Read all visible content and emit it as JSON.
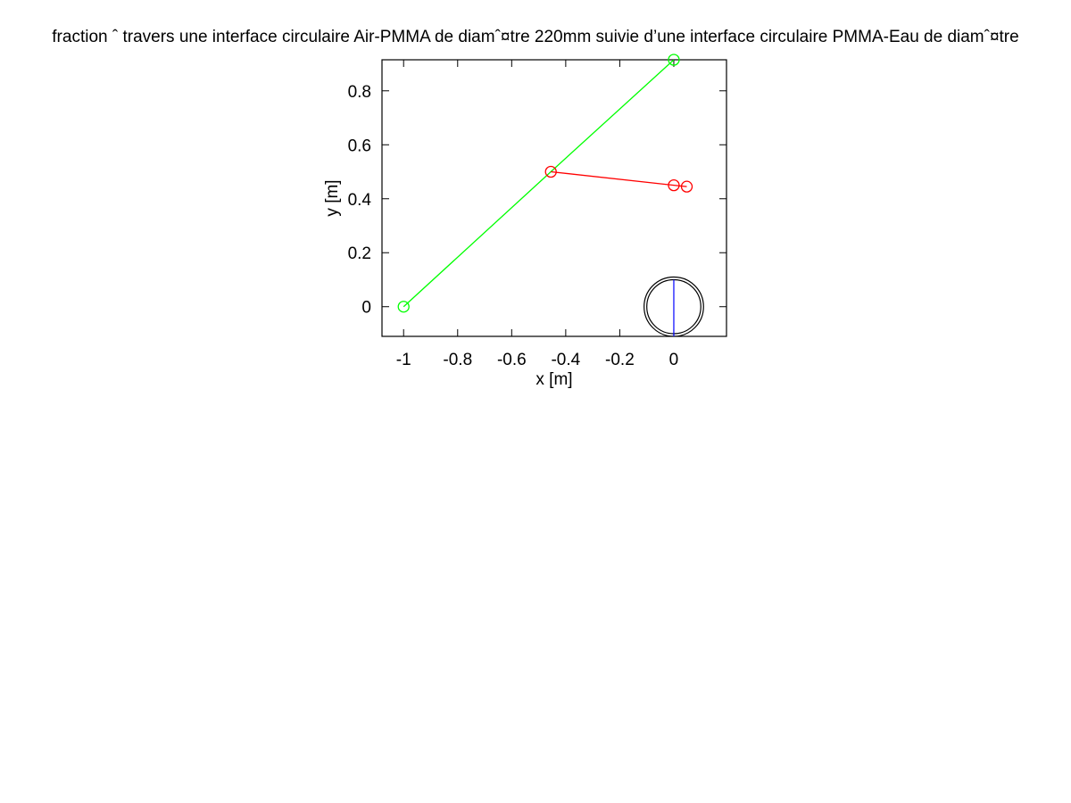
{
  "chart_data": {
    "type": "line",
    "title": "fraction ˆ  travers une interface circulaire Air-PMMA de diamˆ¤tre 220mm suivie d’une interface circulaire PMMA-Eau de diamˆ¤tre",
    "xlabel": "x [m]",
    "ylabel": "y [m]",
    "xlim": [
      -1.08,
      0.195
    ],
    "ylim": [
      -0.11,
      0.915
    ],
    "x_ticks": [
      -1,
      -0.8,
      -0.6,
      -0.4,
      -0.2,
      0
    ],
    "x_tick_labels": [
      "-1",
      "-0.8",
      "-0.6",
      "-0.4",
      "-0.2",
      "0"
    ],
    "y_ticks": [
      0,
      0.2,
      0.4,
      0.6,
      0.8
    ],
    "y_tick_labels": [
      "0",
      "0.2",
      "0.4",
      "0.6",
      "0.8"
    ],
    "grid": false,
    "legend": "none",
    "series": [
      {
        "color": "#00ff00",
        "x": [
          -1.0,
          -0.455,
          0.0
        ],
        "y": [
          0.0,
          0.5,
          0.915
        ],
        "markers": [
          {
            "x": -1.0,
            "y": 0.0
          },
          {
            "x": 0.0,
            "y": 0.915
          }
        ]
      },
      {
        "color": "#ff0000",
        "x": [
          -0.455,
          0.0,
          0.048
        ],
        "y": [
          0.5,
          0.45,
          0.445
        ],
        "markers": [
          {
            "x": -0.455,
            "y": 0.5
          },
          {
            "x": 0.0,
            "y": 0.45
          },
          {
            "x": 0.048,
            "y": 0.445
          }
        ]
      }
    ],
    "interfaces": [
      {
        "name": "air-pmma-circle",
        "cx": 0.0,
        "cy": 0.0,
        "diameter": 0.22,
        "color": "#000000"
      },
      {
        "name": "pmma-eau-circle",
        "cx": 0.0,
        "cy": 0.0,
        "diameter": 0.2,
        "color": "#000000"
      }
    ],
    "diameter_line": {
      "x": [
        0.0,
        0.0
      ],
      "y": [
        -0.11,
        0.1
      ],
      "color": "#0000ff"
    }
  }
}
